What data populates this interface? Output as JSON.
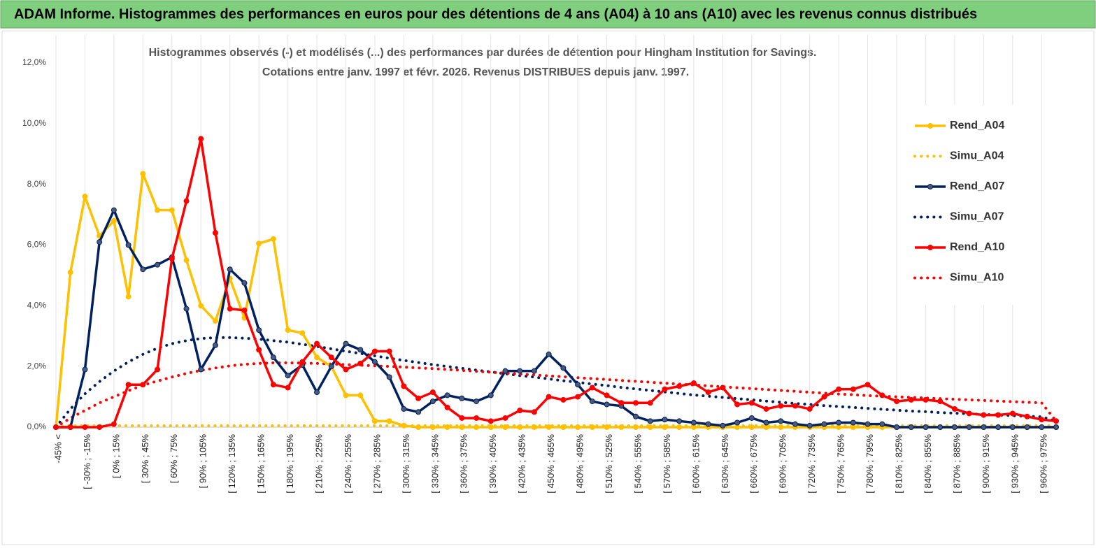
{
  "header": "ADAM Informe. Histogrammes des performances en euros pour des détentions de 4 ans (A04) à 10 ans (A10) avec les revenus connus distribués",
  "chart_data": {
    "type": "line",
    "title": [
      "Histogrammes observés (-) et modélisés (...) des performances par durées de détention pour Hingham Institution for Savings.",
      "Cotations entre janv. 1997 et févr. 2026. Revenus DISTRIBUES depuis janv. 1997."
    ],
    "categories": [
      "-45% <",
      null,
      "[ -30% ; -15%",
      null,
      "[ 0% ; 15%",
      null,
      "[ 30% ; 45%",
      null,
      "[ 60% ; 75%",
      null,
      "[ 90% ; 105%",
      null,
      "[ 120% ; 135%",
      null,
      "[ 150% ; 165%",
      null,
      "[ 180% ; 195%",
      null,
      "[ 210% ; 225%",
      null,
      "[ 240% ; 255%",
      null,
      "[ 270% ; 285%",
      null,
      "[ 300% ; 315%",
      null,
      "[ 330% ; 345%",
      null,
      "[ 360% ; 375%",
      null,
      "[ 390% ; 405%",
      null,
      "[ 420% ; 435%",
      null,
      "[ 450% ; 465%",
      null,
      "[ 480% ; 495%",
      null,
      "[ 510% ; 525%",
      null,
      "[ 540% ; 555%",
      null,
      "[ 570% ; 585%",
      null,
      "[ 600% ; 615%",
      null,
      "[ 630% ; 645%",
      null,
      "[ 660% ; 675%",
      null,
      "[ 690% ; 705%",
      null,
      "[ 720% ; 735%",
      null,
      "[ 750% ; 765%",
      null,
      "[ 780% ; 795%",
      null,
      "[ 810% ; 825%",
      null,
      "[ 840% ; 855%",
      null,
      "[ 870% ; 885%",
      null,
      "[ 900% ; 915%",
      null,
      "[ 930% ; 945%",
      null,
      "[ 960% ; 975%",
      null
    ],
    "series": [
      {
        "name": "Rend_A04",
        "color": "#ffc000",
        "style": "solid",
        "markers": true,
        "values": [
          0,
          5.1,
          7.6,
          6.3,
          6.8,
          4.3,
          8.35,
          7.15,
          7.15,
          5.5,
          4.0,
          3.5,
          4.9,
          3.6,
          6.05,
          6.2,
          3.2,
          3.1,
          2.3,
          2.0,
          1.05,
          1.05,
          0.2,
          0.2,
          0.05,
          0,
          0,
          0,
          0,
          0,
          0,
          0,
          0,
          0,
          0,
          0,
          0,
          0,
          0,
          0,
          0,
          0,
          0,
          0,
          0,
          0,
          0,
          0,
          0,
          0,
          0,
          0,
          0,
          0,
          0,
          0,
          0,
          0,
          0,
          0,
          0,
          0,
          0,
          0,
          0,
          0,
          0,
          0,
          0,
          0
        ]
      },
      {
        "name": "Simu_A04",
        "color": "#ffc000",
        "style": "dotted",
        "markers": false,
        "values": [
          0,
          0.05,
          0.05,
          0.05,
          0.05,
          0.05,
          0.05,
          0.05,
          0.05,
          0.05,
          0.05,
          0.05,
          0.05,
          0.05,
          0.05,
          0.05,
          0.05,
          0.05,
          0.05,
          0.05,
          0.05,
          0.05,
          0.05,
          0.05,
          0.05,
          0.05,
          0.05,
          0.05,
          0.05,
          0.05,
          0.05,
          0.05,
          0.05,
          0.05,
          0.05,
          0.05,
          0.05,
          0.05,
          0.05,
          0.05,
          0.05,
          0.05,
          0.05,
          0.05,
          0.05,
          0.05,
          0.05,
          0.05,
          0.05,
          0.05,
          0.05,
          0.05,
          0.05,
          0.05,
          0.05,
          0.05,
          0.05,
          0.05,
          0.05,
          0.05,
          0.05,
          0.05,
          0.05,
          0.05,
          0.05,
          0.05,
          0.05,
          0.05,
          0.05,
          0.05
        ]
      },
      {
        "name": "Rend_A07",
        "color": "#002060",
        "style": "solid",
        "markers": true,
        "values": [
          0,
          0,
          1.9,
          6.1,
          7.15,
          6.0,
          5.2,
          5.35,
          5.6,
          3.9,
          1.9,
          2.7,
          5.2,
          4.75,
          3.2,
          2.3,
          1.7,
          2.05,
          1.15,
          2.0,
          2.75,
          2.55,
          2.15,
          1.65,
          0.6,
          0.5,
          0.85,
          1.05,
          0.95,
          0.85,
          1.05,
          1.85,
          1.85,
          1.85,
          2.4,
          1.95,
          1.4,
          0.85,
          0.75,
          0.7,
          0.35,
          0.2,
          0.25,
          0.2,
          0.15,
          0.1,
          0.05,
          0.15,
          0.3,
          0.15,
          0.2,
          0.1,
          0.05,
          0.1,
          0.15,
          0.15,
          0.1,
          0.1,
          0,
          0,
          0,
          0,
          0,
          0,
          0,
          0,
          0,
          0,
          0,
          0
        ]
      },
      {
        "name": "Simu_A07",
        "color": "#002060",
        "style": "dotted",
        "markers": false,
        "values": [
          0,
          0.6,
          1.1,
          1.5,
          1.85,
          2.15,
          2.4,
          2.6,
          2.75,
          2.85,
          2.92,
          2.95,
          2.95,
          2.93,
          2.9,
          2.85,
          2.8,
          2.73,
          2.66,
          2.58,
          2.5,
          2.43,
          2.35,
          2.27,
          2.2,
          2.13,
          2.06,
          2.0,
          1.94,
          1.88,
          1.82,
          1.76,
          1.7,
          1.65,
          1.59,
          1.53,
          1.48,
          1.42,
          1.37,
          1.31,
          1.26,
          1.21,
          1.16,
          1.11,
          1.06,
          1.02,
          0.98,
          0.94,
          0.9,
          0.86,
          0.82,
          0.78,
          0.75,
          0.71,
          0.68,
          0.65,
          0.62,
          0.59,
          0.56,
          0.53,
          0.51,
          0.48,
          0.46,
          0.44,
          0.42,
          0.4,
          0.38,
          0.36,
          0.34,
          0.2
        ]
      },
      {
        "name": "Rend_A10",
        "color": "#ff0000",
        "style": "solid",
        "markers": true,
        "values": [
          0,
          0,
          0,
          0,
          0.1,
          1.4,
          1.4,
          1.9,
          5.55,
          7.45,
          9.5,
          6.4,
          3.9,
          3.85,
          2.55,
          1.4,
          1.3,
          2.15,
          2.75,
          2.3,
          1.9,
          2.1,
          2.5,
          2.5,
          1.35,
          0.95,
          1.15,
          0.65,
          0.3,
          0.3,
          0.2,
          0.3,
          0.55,
          0.5,
          1.0,
          0.9,
          1.0,
          1.3,
          1.05,
          0.8,
          0.8,
          0.8,
          1.25,
          1.35,
          1.45,
          1.15,
          1.3,
          0.75,
          0.8,
          0.6,
          0.7,
          0.7,
          0.6,
          1.0,
          1.25,
          1.25,
          1.4,
          1.05,
          0.85,
          0.9,
          0.9,
          0.85,
          0.6,
          0.45,
          0.4,
          0.4,
          0.45,
          0.35,
          0.25,
          0.2
        ]
      },
      {
        "name": "Simu_A10",
        "color": "#ff0000",
        "style": "dotted",
        "markers": false,
        "values": [
          0,
          0.3,
          0.55,
          0.8,
          1.0,
          1.2,
          1.38,
          1.52,
          1.65,
          1.77,
          1.87,
          1.95,
          2.02,
          2.07,
          2.1,
          2.12,
          2.12,
          2.11,
          2.1,
          2.08,
          2.06,
          2.04,
          2.02,
          2.0,
          1.98,
          1.95,
          1.93,
          1.9,
          1.87,
          1.84,
          1.81,
          1.78,
          1.75,
          1.72,
          1.69,
          1.66,
          1.63,
          1.6,
          1.57,
          1.54,
          1.51,
          1.48,
          1.45,
          1.42,
          1.39,
          1.36,
          1.33,
          1.3,
          1.27,
          1.24,
          1.21,
          1.18,
          1.15,
          1.12,
          1.09,
          1.07,
          1.04,
          1.02,
          1.0,
          0.98,
          0.96,
          0.94,
          0.92,
          0.9,
          0.88,
          0.86,
          0.84,
          0.82,
          0.8,
          0.2
        ]
      }
    ],
    "ylim": [
      0,
      12
    ],
    "yticks": [
      {
        "value": 0,
        "label": "0,0%"
      },
      {
        "value": 2,
        "label": "2,0%"
      },
      {
        "value": 4,
        "label": "4,0%"
      },
      {
        "value": 6,
        "label": "6,0%"
      },
      {
        "value": 8,
        "label": "8,0%"
      },
      {
        "value": 10,
        "label": "10,0%"
      },
      {
        "value": 12,
        "label": "12,0%"
      }
    ],
    "xgrid": true,
    "ygrid": false,
    "legend": "right"
  }
}
